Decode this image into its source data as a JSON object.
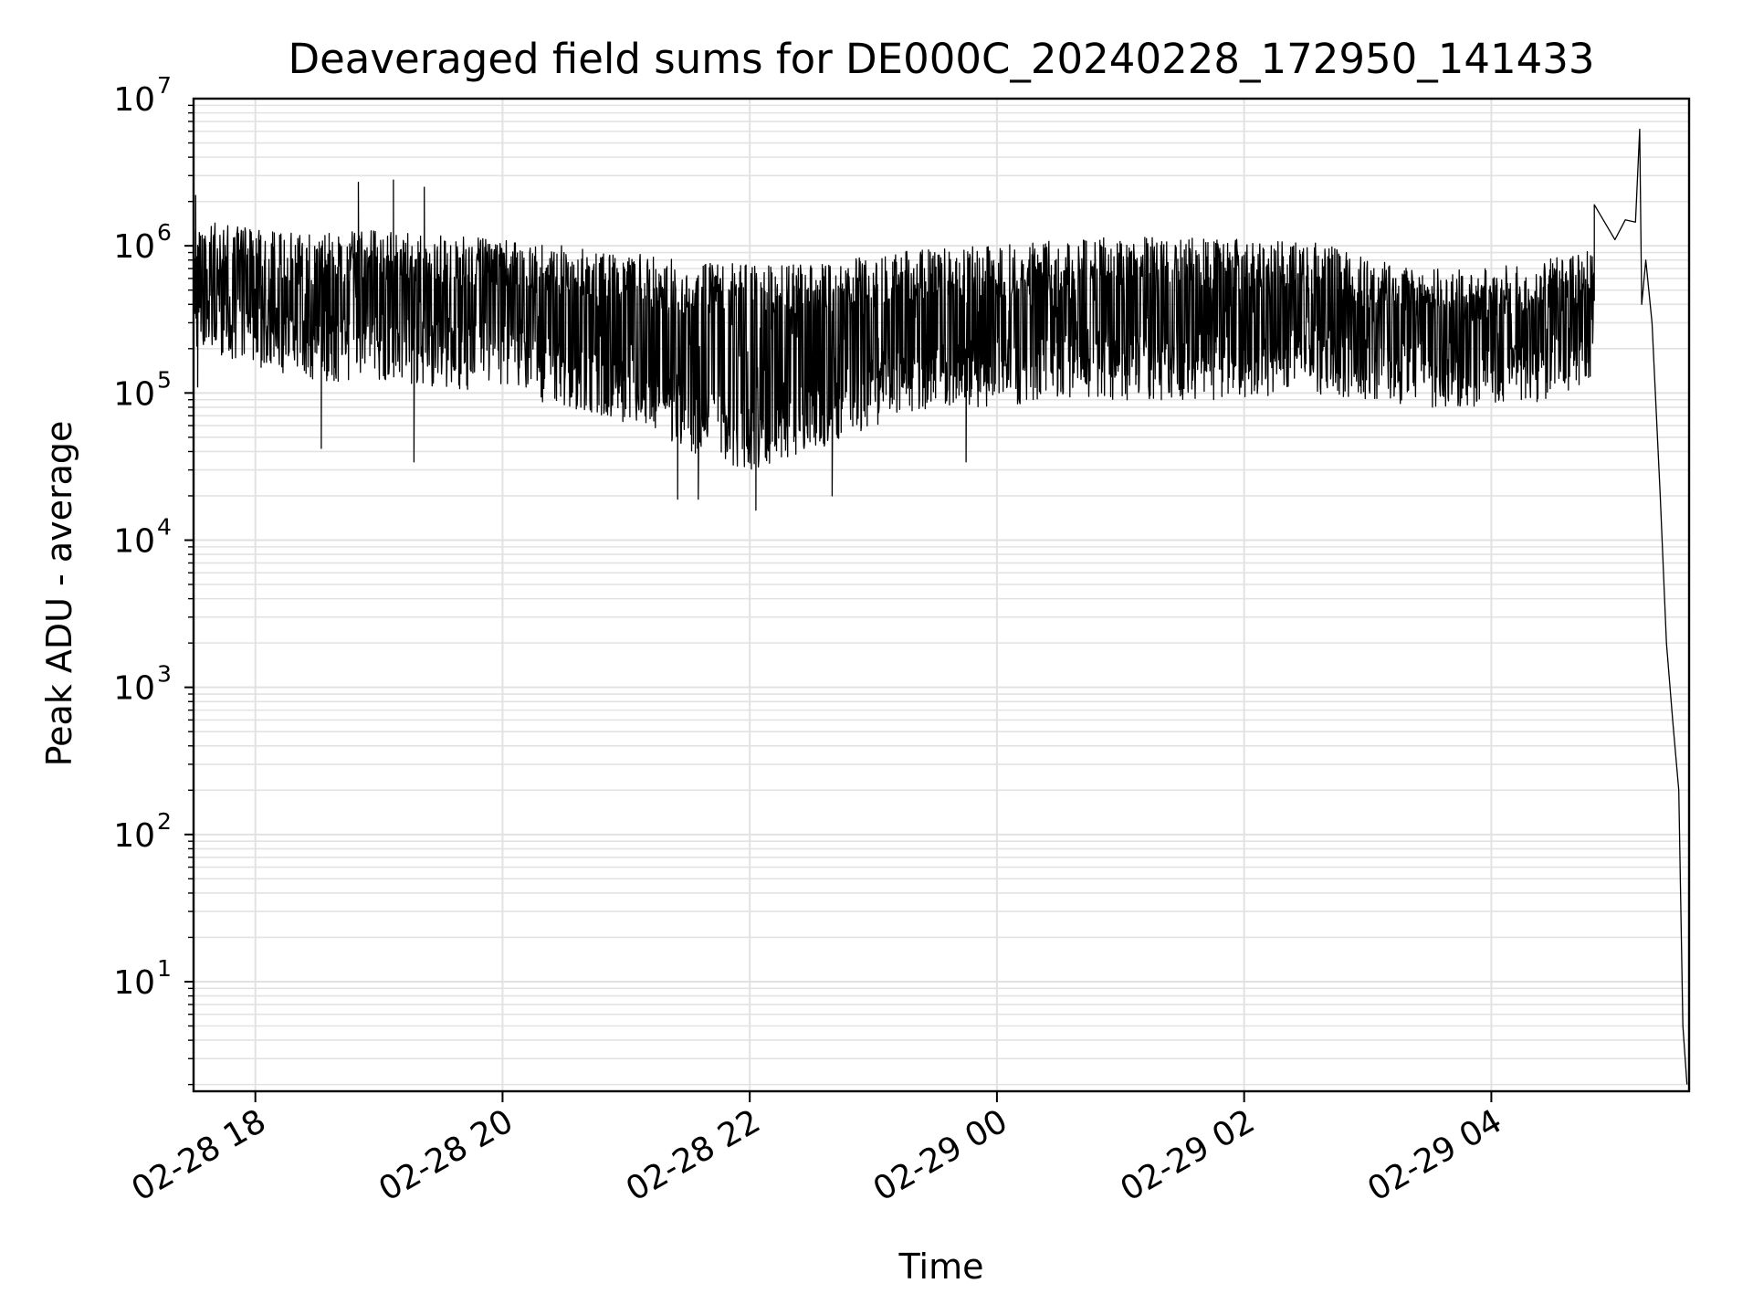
{
  "chart_data": {
    "type": "line",
    "title": "Deaveraged field sums for DE000C_20240228_172950_141433",
    "xlabel": "Time",
    "ylabel": "Peak ADU - average",
    "yscale": "log",
    "ylim": [
      1.8,
      10000000
    ],
    "xlim": [
      "2024-02-28 17:30",
      "2024-02-29 05:36"
    ],
    "grid": true,
    "line_color": "#000000",
    "grid_color": "#e2e2e2",
    "x_ticks": [
      {
        "label": "02-28 18",
        "time": "2024-02-28 18:00"
      },
      {
        "label": "02-28 20",
        "time": "2024-02-28 20:00"
      },
      {
        "label": "02-28 22",
        "time": "2024-02-28 22:00"
      },
      {
        "label": "02-29 00",
        "time": "2024-02-29 00:00"
      },
      {
        "label": "02-29 02",
        "time": "2024-02-29 02:00"
      },
      {
        "label": "02-29 04",
        "time": "2024-02-29 04:00"
      }
    ],
    "y_ticks": [
      {
        "base": "10",
        "exp": "1",
        "value": 10
      },
      {
        "base": "10",
        "exp": "2",
        "value": 100
      },
      {
        "base": "10",
        "exp": "3",
        "value": 1000
      },
      {
        "base": "10",
        "exp": "4",
        "value": 10000
      },
      {
        "base": "10",
        "exp": "5",
        "value": 100000
      },
      {
        "base": "10",
        "exp": "6",
        "value": 1000000
      },
      {
        "base": "10",
        "exp": "7",
        "value": 10000000
      }
    ],
    "series": [
      {
        "band_upper": [
          [
            "2024-02-28 17:30",
            1500000
          ],
          [
            "2024-02-28 18:00",
            1300000
          ],
          [
            "2024-02-28 18:30",
            1200000
          ],
          [
            "2024-02-28 19:00",
            1300000
          ],
          [
            "2024-02-28 19:30",
            1200000
          ],
          [
            "2024-02-28 20:00",
            1100000
          ],
          [
            "2024-02-28 20:30",
            1000000
          ],
          [
            "2024-02-28 21:00",
            900000
          ],
          [
            "2024-02-28 21:30",
            800000
          ],
          [
            "2024-02-28 22:00",
            750000
          ],
          [
            "2024-02-28 22:30",
            750000
          ],
          [
            "2024-02-28 23:00",
            850000
          ],
          [
            "2024-02-28 23:30",
            1000000
          ],
          [
            "2024-02-29 00:00",
            1000000
          ],
          [
            "2024-02-29 00:30",
            1100000
          ],
          [
            "2024-02-29 01:00",
            1150000
          ],
          [
            "2024-02-29 01:30",
            1150000
          ],
          [
            "2024-02-29 02:00",
            1150000
          ],
          [
            "2024-02-29 02:30",
            1100000
          ],
          [
            "2024-02-29 03:00",
            850000
          ],
          [
            "2024-02-29 03:30",
            700000
          ],
          [
            "2024-02-29 04:00",
            700000
          ],
          [
            "2024-02-29 04:30",
            850000
          ],
          [
            "2024-02-29 05:00",
            1000000
          ]
        ],
        "band_lower": [
          [
            "2024-02-28 17:30",
            200000
          ],
          [
            "2024-02-28 18:00",
            150000
          ],
          [
            "2024-02-28 18:30",
            120000
          ],
          [
            "2024-02-28 19:00",
            120000
          ],
          [
            "2024-02-28 19:30",
            110000
          ],
          [
            "2024-02-28 20:00",
            100000
          ],
          [
            "2024-02-28 20:30",
            80000
          ],
          [
            "2024-02-28 21:00",
            60000
          ],
          [
            "2024-02-28 21:30",
            40000
          ],
          [
            "2024-02-28 22:00",
            30000
          ],
          [
            "2024-02-28 22:30",
            40000
          ],
          [
            "2024-02-28 23:00",
            60000
          ],
          [
            "2024-02-28 23:30",
            80000
          ],
          [
            "2024-02-29 00:00",
            80000
          ],
          [
            "2024-02-29 00:30",
            90000
          ],
          [
            "2024-02-29 01:00",
            90000
          ],
          [
            "2024-02-29 01:30",
            90000
          ],
          [
            "2024-02-29 02:00",
            90000
          ],
          [
            "2024-02-29 02:30",
            100000
          ],
          [
            "2024-02-29 03:00",
            90000
          ],
          [
            "2024-02-29 03:30",
            80000
          ],
          [
            "2024-02-29 04:00",
            80000
          ],
          [
            "2024-02-29 04:30",
            90000
          ],
          [
            "2024-02-29 05:00",
            150000
          ]
        ],
        "points": [
          [
            "2024-02-28 17:30",
            500000
          ],
          [
            "2024-02-28 17:31",
            2200000
          ],
          [
            "2024-02-28 17:32",
            110000
          ],
          [
            "2024-02-28 18:32",
            42000
          ],
          [
            "2024-02-28 18:50",
            2700000
          ],
          [
            "2024-02-28 19:07",
            2800000
          ],
          [
            "2024-02-28 19:17",
            34000
          ],
          [
            "2024-02-28 19:22",
            2500000
          ],
          [
            "2024-02-28 21:25",
            19000
          ],
          [
            "2024-02-28 21:35",
            19000
          ],
          [
            "2024-02-28 22:03",
            16000
          ],
          [
            "2024-02-28 22:40",
            20000
          ],
          [
            "2024-02-28 23:45",
            34000
          ],
          [
            "2024-02-29 04:50",
            1900000
          ],
          [
            "2024-02-29 05:00",
            1100000
          ],
          [
            "2024-02-29 05:05",
            1500000
          ],
          [
            "2024-02-29 05:10",
            1450000
          ],
          [
            "2024-02-29 05:12",
            6200000
          ],
          [
            "2024-02-29 05:13",
            400000
          ],
          [
            "2024-02-29 05:15",
            800000
          ],
          [
            "2024-02-29 05:18",
            300000
          ],
          [
            "2024-02-29 05:22",
            20000
          ],
          [
            "2024-02-29 05:25",
            2000
          ],
          [
            "2024-02-29 05:28",
            600
          ],
          [
            "2024-02-29 05:31",
            200
          ],
          [
            "2024-02-29 05:33",
            5
          ],
          [
            "2024-02-29 05:35",
            2
          ]
        ]
      }
    ]
  }
}
